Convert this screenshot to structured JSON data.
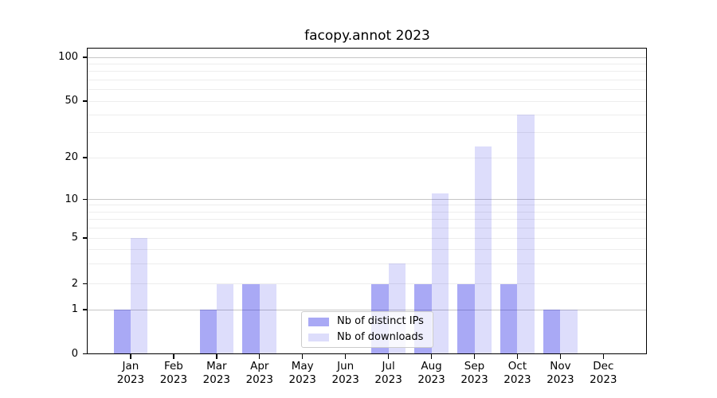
{
  "chart_data": {
    "type": "bar",
    "title": "facopy.annot 2023",
    "categories": [
      "Jan",
      "Feb",
      "Mar",
      "Apr",
      "May",
      "Jun",
      "Jul",
      "Aug",
      "Sep",
      "Oct",
      "Nov",
      "Dec"
    ],
    "category_year": "2023",
    "series": [
      {
        "name": "Nb of distinct IPs",
        "color": "rgba(30,30,230,0.38)",
        "values": [
          1,
          0,
          1,
          2,
          0,
          0,
          2,
          2,
          2,
          2,
          1,
          0
        ]
      },
      {
        "name": "Nb of downloads",
        "color": "rgba(30,30,230,0.15)",
        "values": [
          5,
          0,
          2,
          2,
          0,
          0,
          3,
          11,
          24,
          40,
          1,
          0
        ]
      }
    ],
    "y_axis": {
      "tick_values": [
        0,
        1,
        2,
        5,
        10,
        20,
        50,
        100
      ],
      "tick_labels": [
        "0",
        "1",
        "2",
        "5",
        "10",
        "20",
        "50",
        "100"
      ],
      "major_gridlines": [
        1,
        10,
        100
      ],
      "minor_gridlines": [
        2,
        3,
        4,
        5,
        6,
        7,
        8,
        9,
        20,
        30,
        40,
        50,
        60,
        70,
        80,
        90
      ],
      "scale": "log-like",
      "ylim": [
        0,
        110
      ]
    },
    "x_axis": {
      "tick_count": 12
    },
    "grid": true,
    "legend_position": "lower center"
  },
  "colors": {
    "major_grid": "#c6c6c6",
    "minor_grid": "#ededed",
    "spine": "#000000",
    "text": "#000000",
    "legend_border": "#cccccc"
  }
}
